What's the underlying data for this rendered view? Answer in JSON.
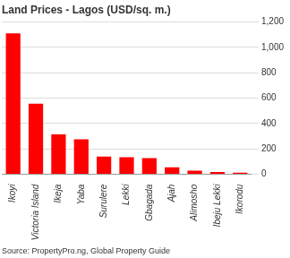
{
  "chart_data": {
    "type": "bar",
    "title": "Land Prices - Lagos (USD/sq. m.)",
    "source": "Source: PropertyPro.ng, Global Property Guide",
    "categories": [
      "Ikoyi",
      "Victoria Island",
      "Ikeja",
      "Yaba",
      "Surulere",
      "Lekki",
      "Gbagada",
      "Ajah",
      "Alimosho",
      "Ibeju Lekki",
      "Ikorodu"
    ],
    "values": [
      1110,
      555,
      315,
      275,
      140,
      135,
      128,
      55,
      28,
      18,
      12
    ],
    "color": "#ff0000",
    "ylim": [
      0,
      1200
    ],
    "yticks": [
      0,
      200,
      400,
      600,
      800,
      {
        "value": 1000,
        "label": "1,000"
      },
      {
        "value": 1200,
        "label": "1,200"
      }
    ],
    "grid": true
  }
}
